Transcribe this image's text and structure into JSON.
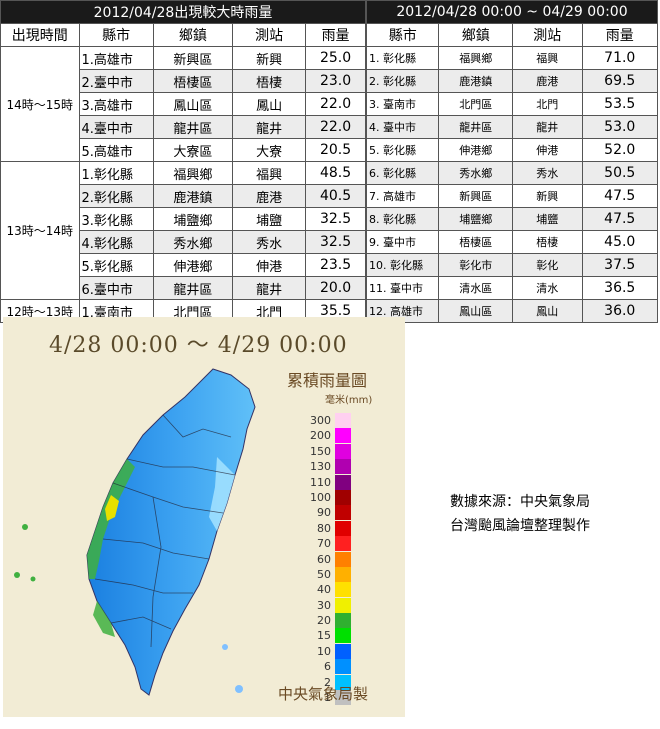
{
  "left_table": {
    "title": "2012/04/28出現較大時雨量",
    "headers": [
      "出現時間",
      "縣市",
      "鄉鎮",
      "測站",
      "雨量"
    ],
    "groups": [
      {
        "time": "14時～15時",
        "rows": [
          {
            "county": "1.高雄市",
            "town": "新興區",
            "station": "新興",
            "rain": "25.0"
          },
          {
            "county": "2.臺中市",
            "town": "梧棲區",
            "station": "梧棲",
            "rain": "23.0"
          },
          {
            "county": "3.高雄市",
            "town": "鳳山區",
            "station": "鳳山",
            "rain": "22.0"
          },
          {
            "county": "4.臺中市",
            "town": "龍井區",
            "station": "龍井",
            "rain": "22.0"
          },
          {
            "county": "5.高雄市",
            "town": "大寮區",
            "station": "大寮",
            "rain": "20.5"
          }
        ]
      },
      {
        "time": "13時～14時",
        "rows": [
          {
            "county": "1.彰化縣",
            "town": "福興鄉",
            "station": "福興",
            "rain": "48.5"
          },
          {
            "county": "2.彰化縣",
            "town": "鹿港鎮",
            "station": "鹿港",
            "rain": "40.5"
          },
          {
            "county": "3.彰化縣",
            "town": "埔鹽鄉",
            "station": "埔鹽",
            "rain": "32.5"
          },
          {
            "county": "4.彰化縣",
            "town": "秀水鄉",
            "station": "秀水",
            "rain": "32.5"
          },
          {
            "county": "5.彰化縣",
            "town": "伸港鄉",
            "station": "伸港",
            "rain": "23.5"
          },
          {
            "county": "6.臺中市",
            "town": "龍井區",
            "station": "龍井",
            "rain": "20.0"
          }
        ]
      },
      {
        "time": "12時～13時",
        "rows": [
          {
            "county": "1.臺南市",
            "town": "北門區",
            "station": "北門",
            "rain": "35.5"
          }
        ]
      }
    ]
  },
  "right_table": {
    "title": "2012/04/28 00:00 ~ 04/29 00:00",
    "headers": [
      "縣市",
      "鄉鎮",
      "測站",
      "雨量"
    ],
    "rows": [
      {
        "county": "1. 彰化縣",
        "town": "福興鄉",
        "station": "福興",
        "rain": "71.0"
      },
      {
        "county": "2. 彰化縣",
        "town": "鹿港鎮",
        "station": "鹿港",
        "rain": "69.5"
      },
      {
        "county": "3. 臺南市",
        "town": "北門區",
        "station": "北門",
        "rain": "53.5"
      },
      {
        "county": "4. 臺中市",
        "town": "龍井區",
        "station": "龍井",
        "rain": "53.0"
      },
      {
        "county": "5. 彰化縣",
        "town": "伸港鄉",
        "station": "伸港",
        "rain": "52.0"
      },
      {
        "county": "6. 彰化縣",
        "town": "秀水鄉",
        "station": "秀水",
        "rain": "50.5"
      },
      {
        "county": "7. 高雄市",
        "town": "新興區",
        "station": "新興",
        "rain": "47.5"
      },
      {
        "county": "8. 彰化縣",
        "town": "埔鹽鄉",
        "station": "埔鹽",
        "rain": "47.5"
      },
      {
        "county": "9. 臺中市",
        "town": "梧棲區",
        "station": "梧棲",
        "rain": "45.0"
      },
      {
        "county": "10. 彰化縣",
        "town": "彰化市",
        "station": "彰化",
        "rain": "37.5"
      },
      {
        "county": "11. 臺中市",
        "town": "清水區",
        "station": "清水",
        "rain": "36.5"
      },
      {
        "county": "12. 高雄市",
        "town": "鳳山區",
        "station": "鳳山",
        "rain": "36.0"
      }
    ]
  },
  "map": {
    "title": "4/28 00:00 ～ 4/29 00:00",
    "legend_title": "累積雨量圖",
    "unit": "毫米(mm)",
    "credit": "中央氣象局製",
    "legend": [
      {
        "label": "300",
        "color": "#ffd0f0"
      },
      {
        "label": "200",
        "color": "#ff00ff"
      },
      {
        "label": "150",
        "color": "#e000e0"
      },
      {
        "label": "130",
        "color": "#b000b0"
      },
      {
        "label": "110",
        "color": "#800080"
      },
      {
        "label": "100",
        "color": "#a00000"
      },
      {
        "label": "90",
        "color": "#c00000"
      },
      {
        "label": "80",
        "color": "#e00000"
      },
      {
        "label": "70",
        "color": "#ff2020"
      },
      {
        "label": "60",
        "color": "#ff8000"
      },
      {
        "label": "50",
        "color": "#ffb000"
      },
      {
        "label": "40",
        "color": "#ffe000"
      },
      {
        "label": "30",
        "color": "#f0f000"
      },
      {
        "label": "20",
        "color": "#30b030"
      },
      {
        "label": "15",
        "color": "#00e000"
      },
      {
        "label": "10",
        "color": "#0060ff"
      },
      {
        "label": "6",
        "color": "#0090ff"
      },
      {
        "label": "2",
        "color": "#00c0ff"
      },
      {
        "label": "1",
        "color": "#c0c0c0"
      }
    ]
  },
  "source": {
    "line1": "數據來源：中央氣象局",
    "line2": "台灣颱風論壇整理製作"
  }
}
